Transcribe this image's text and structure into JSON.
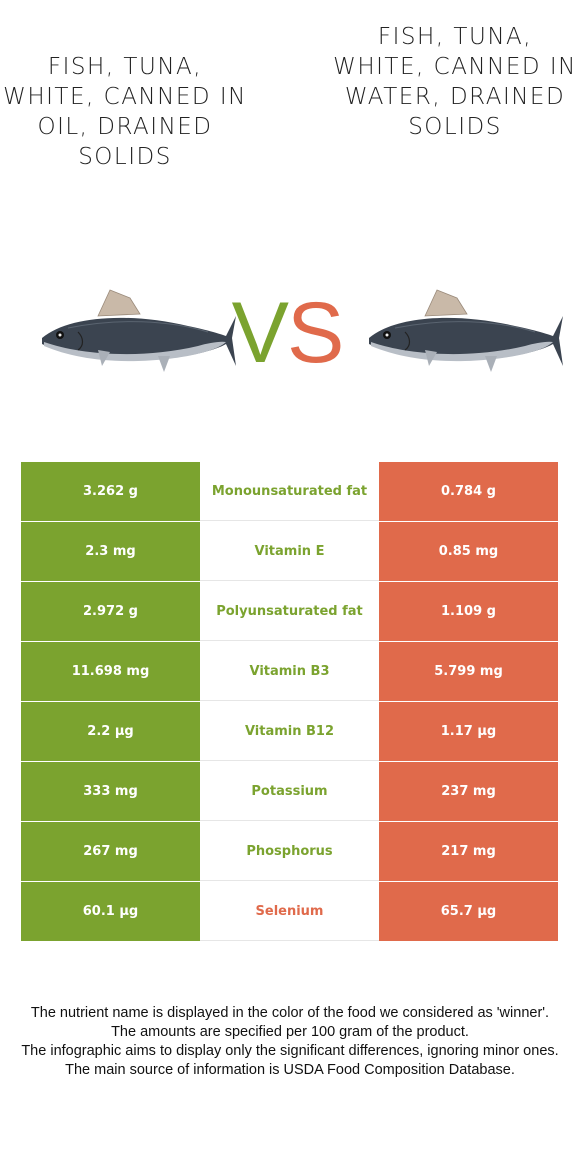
{
  "left_food": {
    "title": "FISH, TUNA, WHITE, CANNED IN OIL, DRAINED SOLIDS"
  },
  "right_food": {
    "title": "FISH, TUNA, WHITE, CANNED IN WATER, DRAINED SOLIDS"
  },
  "vs": {
    "v": "V",
    "s": "S"
  },
  "colors": {
    "winner_left": "#7ba32f",
    "winner_right": "#e06a4b"
  },
  "rows": [
    {
      "left": "3.262 g",
      "nutrient": "Monounsaturated fat",
      "right": "0.784 g",
      "winner": "left"
    },
    {
      "left": "2.3 mg",
      "nutrient": "Vitamin E",
      "right": "0.85 mg",
      "winner": "left"
    },
    {
      "left": "2.972 g",
      "nutrient": "Polyunsaturated fat",
      "right": "1.109 g",
      "winner": "left"
    },
    {
      "left": "11.698 mg",
      "nutrient": "Vitamin B3",
      "right": "5.799 mg",
      "winner": "left"
    },
    {
      "left": "2.2 µg",
      "nutrient": "Vitamin B12",
      "right": "1.17 µg",
      "winner": "left"
    },
    {
      "left": "333 mg",
      "nutrient": "Potassium",
      "right": "237 mg",
      "winner": "left"
    },
    {
      "left": "267 mg",
      "nutrient": "Phosphorus",
      "right": "217 mg",
      "winner": "left"
    },
    {
      "left": "60.1 µg",
      "nutrient": "Selenium",
      "right": "65.7 µg",
      "winner": "right"
    }
  ],
  "notes": [
    "The nutrient name is displayed in the color of the food we considered as 'winner'.",
    "The amounts are specified per 100 gram of the product.",
    "The infographic aims to display only the significant differences, ignoring minor ones.",
    "The main source of information is USDA Food Composition Database."
  ]
}
